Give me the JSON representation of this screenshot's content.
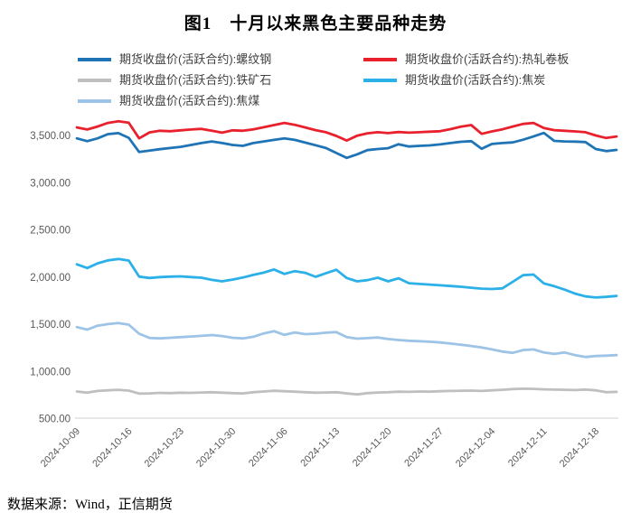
{
  "title": "图1　十月以来黑色主要品种走势",
  "footer": {
    "source_text": "数据来源：Wind，正信期货"
  },
  "chart_data": {
    "type": "line",
    "title": "图1 十月以来黑色主要品种走势",
    "grid": false,
    "legend_position": "top",
    "ylim": [
      500,
      3700
    ],
    "y_tick_labels": [
      "500.00",
      "1,000.00",
      "1,500.00",
      "2,000.00",
      "2,500.00",
      "3,000.00",
      "3,500.00"
    ],
    "x_tick_labels": [
      "2024-10-09",
      "2024-10-16",
      "2024-10-23",
      "2024-10-30",
      "2024-11-06",
      "2024-11-13",
      "2024-11-20",
      "2024-11-27",
      "2024-12-04",
      "2024-12-11",
      "2024-12-18"
    ],
    "x_tick_every": 5,
    "series": [
      {
        "name": "期货收盘价(活跃合约):螺纹钢",
        "color": "#1F74B6",
        "values": [
          3465,
          3435,
          3465,
          3510,
          3520,
          3470,
          3320,
          3335,
          3350,
          3362,
          3375,
          3395,
          3415,
          3432,
          3415,
          3395,
          3385,
          3415,
          3432,
          3448,
          3465,
          3448,
          3420,
          3392,
          3362,
          3310,
          3258,
          3295,
          3340,
          3352,
          3360,
          3402,
          3378,
          3385,
          3390,
          3400,
          3415,
          3428,
          3435,
          3355,
          3405,
          3415,
          3422,
          3450,
          3485,
          3522,
          3438,
          3432,
          3430,
          3425,
          3352,
          3330,
          3342
        ]
      },
      {
        "name": "期货收盘价(活跃合约):热轧卷板",
        "color": "#E8212D",
        "values": [
          3580,
          3558,
          3590,
          3628,
          3645,
          3630,
          3465,
          3528,
          3545,
          3540,
          3550,
          3558,
          3565,
          3545,
          3525,
          3550,
          3545,
          3560,
          3582,
          3605,
          3628,
          3608,
          3580,
          3552,
          3530,
          3490,
          3442,
          3492,
          3518,
          3530,
          3520,
          3532,
          3525,
          3530,
          3535,
          3540,
          3562,
          3588,
          3605,
          3512,
          3538,
          3560,
          3590,
          3618,
          3628,
          3575,
          3552,
          3545,
          3538,
          3530,
          3495,
          3468,
          3485
        ]
      },
      {
        "name": "期货收盘价(活跃合约):铁矿石",
        "color": "#BFBFBF",
        "values": [
          782,
          770,
          788,
          795,
          800,
          792,
          760,
          762,
          768,
          765,
          770,
          768,
          772,
          775,
          770,
          765,
          762,
          775,
          782,
          790,
          785,
          780,
          775,
          770,
          772,
          775,
          762,
          752,
          765,
          772,
          775,
          780,
          778,
          782,
          780,
          785,
          788,
          790,
          792,
          788,
          795,
          800,
          808,
          812,
          810,
          805,
          802,
          800,
          798,
          802,
          795,
          775,
          778
        ]
      },
      {
        "name": "期货收盘价(活跃合约):焦炭",
        "color": "#2BB0E8",
        "values": [
          2130,
          2090,
          2140,
          2172,
          2186,
          2170,
          2000,
          1985,
          1995,
          2000,
          2002,
          1995,
          1988,
          1965,
          1950,
          1968,
          1990,
          2018,
          2042,
          2075,
          2028,
          2058,
          2040,
          1998,
          2035,
          2072,
          1985,
          1950,
          1962,
          1988,
          1950,
          1982,
          1930,
          1922,
          1915,
          1908,
          1900,
          1892,
          1882,
          1872,
          1868,
          1875,
          1945,
          2015,
          2022,
          1928,
          1898,
          1862,
          1820,
          1790,
          1778,
          1785,
          1795
        ]
      },
      {
        "name": "期货收盘价(活跃合约):焦煤",
        "color": "#9DC3E6",
        "values": [
          1465,
          1438,
          1480,
          1496,
          1508,
          1490,
          1395,
          1350,
          1345,
          1352,
          1358,
          1365,
          1372,
          1380,
          1370,
          1352,
          1345,
          1362,
          1398,
          1422,
          1382,
          1408,
          1390,
          1395,
          1405,
          1412,
          1358,
          1342,
          1348,
          1355,
          1338,
          1328,
          1320,
          1315,
          1310,
          1302,
          1290,
          1278,
          1265,
          1248,
          1228,
          1205,
          1192,
          1222,
          1228,
          1196,
          1180,
          1196,
          1168,
          1148,
          1158,
          1162,
          1168
        ]
      }
    ]
  }
}
